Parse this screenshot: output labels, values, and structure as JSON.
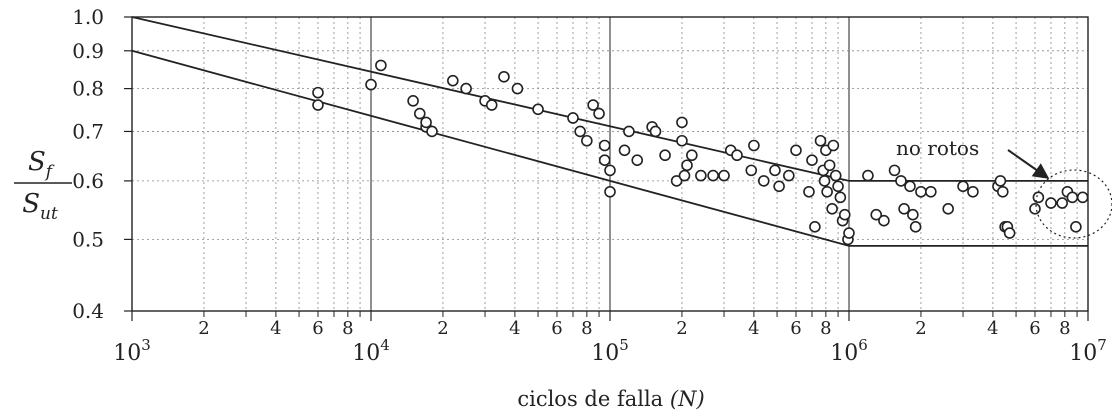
{
  "chart_data": {
    "type": "scatter",
    "x_scale": "log",
    "y_scale": "log",
    "xlim": [
      1000,
      10000000
    ],
    "ylim": [
      0.4,
      1.0
    ],
    "x_decades": [
      {
        "base": "10",
        "exp": "3",
        "value": 1000
      },
      {
        "base": "10",
        "exp": "4",
        "value": 10000
      },
      {
        "base": "10",
        "exp": "5",
        "value": 100000
      },
      {
        "base": "10",
        "exp": "6",
        "value": 1000000
      },
      {
        "base": "10",
        "exp": "7",
        "value": 10000000
      }
    ],
    "x_minor_labels": [
      "2",
      "4",
      "6",
      "8"
    ],
    "y_ticks": [
      {
        "label": "0.4",
        "value": 0.4
      },
      {
        "label": "0.5",
        "value": 0.5
      },
      {
        "label": "0.6",
        "value": 0.6
      },
      {
        "label": "0.7",
        "value": 0.7
      },
      {
        "label": "0.8",
        "value": 0.8
      },
      {
        "label": "0.9",
        "value": 0.9
      },
      {
        "label": "1.0",
        "value": 1.0
      }
    ],
    "xlabel": "ciclos de falla",
    "xlabel_var": "(N)",
    "ylabel": {
      "num": "S",
      "num_sub": "f",
      "den": "S",
      "den_sub": "ut"
    },
    "grid": true,
    "annotation": {
      "text": "no rotos",
      "points_to": [
        8500000,
        0.57
      ]
    },
    "bounds": [
      {
        "name": "upper",
        "points": [
          [
            1000,
            1.0
          ],
          [
            1000000,
            0.6
          ],
          [
            10000000,
            0.6
          ]
        ]
      },
      {
        "name": "lower",
        "points": [
          [
            1000,
            0.9
          ],
          [
            1000000,
            0.49
          ],
          [
            10000000,
            0.49
          ]
        ]
      }
    ],
    "points": [
      [
        6000,
        0.79
      ],
      [
        6000,
        0.76
      ],
      [
        10000,
        0.81
      ],
      [
        11000,
        0.86
      ],
      [
        15000,
        0.77
      ],
      [
        16000,
        0.74
      ],
      [
        17000,
        0.71
      ],
      [
        17000,
        0.72
      ],
      [
        18000,
        0.7
      ],
      [
        22000,
        0.82
      ],
      [
        25000,
        0.8
      ],
      [
        30000,
        0.77
      ],
      [
        32000,
        0.76
      ],
      [
        36000,
        0.83
      ],
      [
        41000,
        0.8
      ],
      [
        50000,
        0.75
      ],
      [
        70000,
        0.73
      ],
      [
        75000,
        0.7
      ],
      [
        80000,
        0.68
      ],
      [
        85000,
        0.76
      ],
      [
        90000,
        0.74
      ],
      [
        95000,
        0.67
      ],
      [
        95000,
        0.64
      ],
      [
        100000,
        0.58
      ],
      [
        100000,
        0.62
      ],
      [
        115000,
        0.66
      ],
      [
        120000,
        0.7
      ],
      [
        130000,
        0.64
      ],
      [
        150000,
        0.71
      ],
      [
        155000,
        0.7
      ],
      [
        170000,
        0.65
      ],
      [
        190000,
        0.6
      ],
      [
        200000,
        0.72
      ],
      [
        200000,
        0.68
      ],
      [
        205000,
        0.61
      ],
      [
        210000,
        0.63
      ],
      [
        220000,
        0.65
      ],
      [
        240000,
        0.61
      ],
      [
        270000,
        0.61
      ],
      [
        300000,
        0.61
      ],
      [
        320000,
        0.66
      ],
      [
        340000,
        0.65
      ],
      [
        390000,
        0.62
      ],
      [
        400000,
        0.67
      ],
      [
        440000,
        0.6
      ],
      [
        490000,
        0.62
      ],
      [
        510000,
        0.59
      ],
      [
        560000,
        0.61
      ],
      [
        600000,
        0.66
      ],
      [
        680000,
        0.58
      ],
      [
        700000,
        0.64
      ],
      [
        720000,
        0.52
      ],
      [
        760000,
        0.68
      ],
      [
        780000,
        0.62
      ],
      [
        790000,
        0.6
      ],
      [
        800000,
        0.66
      ],
      [
        810000,
        0.58
      ],
      [
        830000,
        0.63
      ],
      [
        850000,
        0.55
      ],
      [
        860000,
        0.67
      ],
      [
        880000,
        0.61
      ],
      [
        900000,
        0.59
      ],
      [
        920000,
        0.57
      ],
      [
        940000,
        0.53
      ],
      [
        960000,
        0.54
      ],
      [
        990000,
        0.5
      ],
      [
        1000000,
        0.51
      ],
      [
        1200000,
        0.61
      ],
      [
        1300000,
        0.54
      ],
      [
        1400000,
        0.53
      ],
      [
        1550000,
        0.62
      ],
      [
        1650000,
        0.6
      ],
      [
        1700000,
        0.55
      ],
      [
        1800000,
        0.59
      ],
      [
        1850000,
        0.54
      ],
      [
        1900000,
        0.52
      ],
      [
        2000000,
        0.58
      ],
      [
        2200000,
        0.58
      ],
      [
        2600000,
        0.55
      ],
      [
        3000000,
        0.59
      ],
      [
        3300000,
        0.58
      ],
      [
        4200000,
        0.59
      ],
      [
        4300000,
        0.6
      ],
      [
        4400000,
        0.58
      ],
      [
        4500000,
        0.52
      ],
      [
        4600000,
        0.52
      ],
      [
        4700000,
        0.51
      ],
      [
        6000000,
        0.55
      ],
      [
        6200000,
        0.57
      ],
      [
        7000000,
        0.56
      ],
      [
        7800000,
        0.56
      ],
      [
        8200000,
        0.58
      ],
      [
        8600000,
        0.57
      ],
      [
        8900000,
        0.52
      ],
      [
        9500000,
        0.57
      ]
    ]
  }
}
